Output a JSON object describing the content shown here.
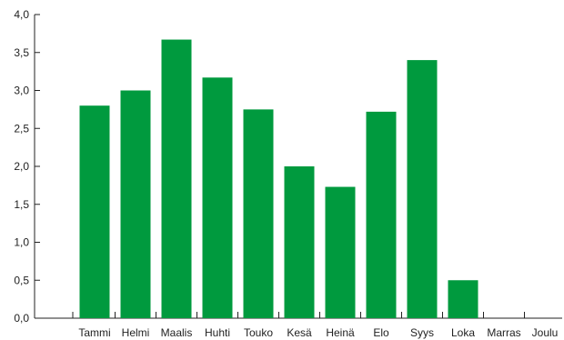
{
  "chart_data": {
    "type": "bar",
    "categories": [
      "Tammi",
      "Helmi",
      "Maalis",
      "Huhti",
      "Touko",
      "Kesä",
      "Heinä",
      "Elo",
      "Syys",
      "Loka",
      "Marras",
      "Joulu"
    ],
    "values": [
      2.8,
      3.0,
      3.67,
      3.17,
      2.75,
      2.0,
      1.73,
      2.72,
      3.4,
      0.5,
      null,
      null
    ],
    "yticks": [
      "0,0",
      "0,5",
      "1,0",
      "1,5",
      "2,0",
      "2,5",
      "3,0",
      "3,5",
      "4,0"
    ],
    "ylim": [
      0,
      4
    ],
    "title": "",
    "xlabel": "",
    "ylabel": "",
    "grid": false,
    "bar_color": "#009a3e"
  }
}
